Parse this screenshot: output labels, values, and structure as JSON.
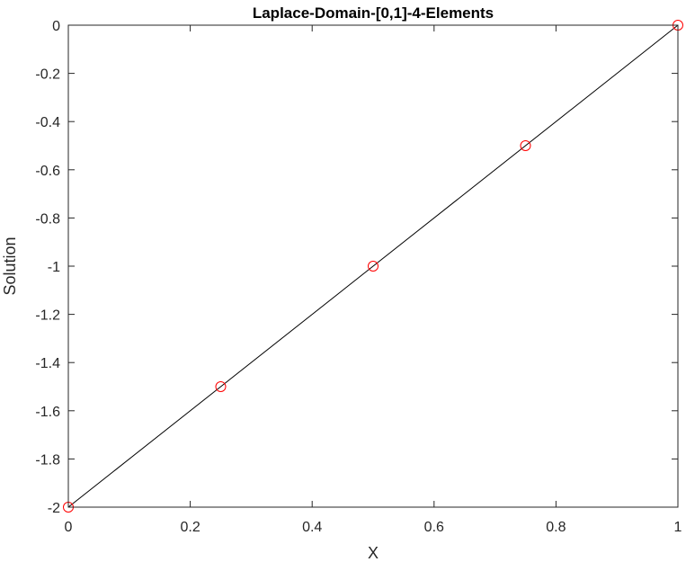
{
  "chart_data": {
    "type": "line",
    "title": "Laplace-Domain-[0,1]-4-Elements",
    "xlabel": "X",
    "ylabel": "Solution",
    "xlim": [
      0,
      1
    ],
    "ylim": [
      -2,
      0
    ],
    "xticks": [
      "0",
      "0.2",
      "0.4",
      "0.6",
      "0.8",
      "1"
    ],
    "xtick_values": [
      0,
      0.2,
      0.4,
      0.6,
      0.8,
      1
    ],
    "yticks": [
      "0",
      "-0.2",
      "-0.4",
      "-0.6",
      "-0.8",
      "-1",
      "-1.2",
      "-1.4",
      "-1.6",
      "-1.8",
      "-2"
    ],
    "ytick_values": [
      0,
      -0.2,
      -0.4,
      -0.6,
      -0.8,
      -1,
      -1.2,
      -1.4,
      -1.6,
      -1.8,
      -2
    ],
    "grid": false,
    "series": [
      {
        "style": "line",
        "color": "#000000",
        "x": [
          0,
          1
        ],
        "y": [
          -2,
          0
        ]
      },
      {
        "style": "markers",
        "marker": "circle",
        "color": "#ff0000",
        "x": [
          0,
          0.25,
          0.5,
          0.75,
          1
        ],
        "y": [
          -2,
          -1.5,
          -1,
          -0.5,
          0
        ]
      }
    ]
  }
}
